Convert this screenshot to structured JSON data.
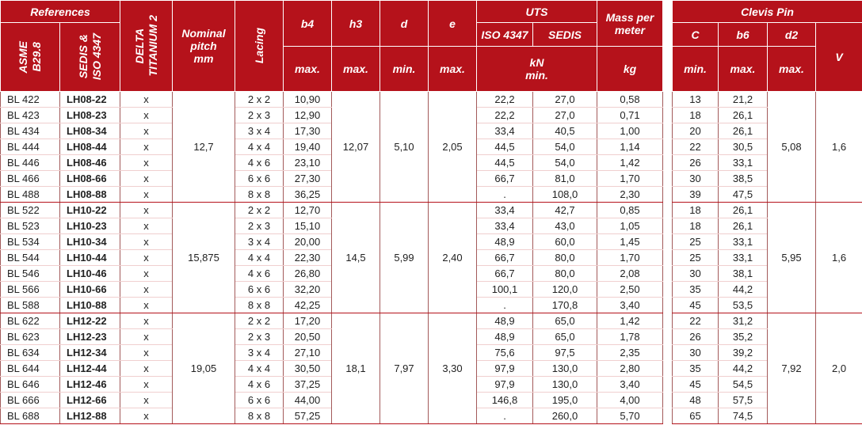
{
  "header": {
    "references": "References",
    "asme": "ASME\nB29.8",
    "sedis_iso": "SEDIS &\nISO 4347",
    "delta": "DELTA\nTITANIUM 2",
    "nominal_pitch": "Nominal\npitch\nmm",
    "lacing": "Lacing",
    "b4": "b4",
    "h3": "h3",
    "d": "d",
    "e": "e",
    "b4_limit": "max.",
    "h3_limit": "max.",
    "d_limit": "min.",
    "e_limit": "max.",
    "uts": "UTS",
    "uts_iso": "ISO 4347",
    "uts_sedis": "SEDIS",
    "uts_unit": "kN\nmin.",
    "mass": "Mass per\nmeter",
    "mass_unit": "kg"
  },
  "clevis_header": {
    "title": "Clevis Pin",
    "c": "C",
    "b6": "b6",
    "d2": "d2",
    "v": "V",
    "c_limit": "min.",
    "b6_limit": "max.",
    "d2_limit": "max."
  },
  "groups": [
    {
      "pitch": "12,7",
      "h3": "12,07",
      "d": "5,10",
      "e": "2,05",
      "d2": "5,08",
      "v": "1,6",
      "rows": [
        [
          "BL 422",
          "LH08-22",
          "x",
          "2 x 2",
          "10,90",
          "22,2",
          "27,0",
          "0,58",
          "13",
          "21,2"
        ],
        [
          "BL 423",
          "LH08-23",
          "x",
          "2 x 3",
          "12,90",
          "22,2",
          "27,0",
          "0,71",
          "18",
          "26,1"
        ],
        [
          "BL 434",
          "LH08-34",
          "x",
          "3 x 4",
          "17,30",
          "33,4",
          "40,5",
          "1,00",
          "20",
          "26,1"
        ],
        [
          "BL 444",
          "LH08-44",
          "x",
          "4 x 4",
          "19,40",
          "44,5",
          "54,0",
          "1,14",
          "22",
          "30,5"
        ],
        [
          "BL 446",
          "LH08-46",
          "x",
          "4 x 6",
          "23,10",
          "44,5",
          "54,0",
          "1,42",
          "26",
          "33,1"
        ],
        [
          "BL 466",
          "LH08-66",
          "x",
          "6 x 6",
          "27,30",
          "66,7",
          "81,0",
          "1,70",
          "30",
          "38,5"
        ],
        [
          "BL 488",
          "LH08-88",
          "x",
          "8 x 8",
          "36,25",
          ".",
          "108,0",
          "2,30",
          "39",
          "47,5"
        ]
      ]
    },
    {
      "pitch": "15,875",
      "h3": "14,5",
      "d": "5,99",
      "e": "2,40",
      "d2": "5,95",
      "v": "1,6",
      "rows": [
        [
          "BL 522",
          "LH10-22",
          "x",
          "2 x 2",
          "12,70",
          "33,4",
          "42,7",
          "0,85",
          "18",
          "26,1"
        ],
        [
          "BL 523",
          "LH10-23",
          "x",
          "2 x 3",
          "15,10",
          "33,4",
          "43,0",
          "1,05",
          "18",
          "26,1"
        ],
        [
          "BL 534",
          "LH10-34",
          "x",
          "3 x 4",
          "20,00",
          "48,9",
          "60,0",
          "1,45",
          "25",
          "33,1"
        ],
        [
          "BL 544",
          "LH10-44",
          "x",
          "4 x 4",
          "22,30",
          "66,7",
          "80,0",
          "1,70",
          "25",
          "33,1"
        ],
        [
          "BL 546",
          "LH10-46",
          "x",
          "4 x 6",
          "26,80",
          "66,7",
          "80,0",
          "2,08",
          "30",
          "38,1"
        ],
        [
          "BL 566",
          "LH10-66",
          "x",
          "6 x 6",
          "32,20",
          "100,1",
          "120,0",
          "2,50",
          "35",
          "44,2"
        ],
        [
          "BL 588",
          "LH10-88",
          "x",
          "8 x 8",
          "42,25",
          ".",
          "170,8",
          "3,40",
          "45",
          "53,5"
        ]
      ]
    },
    {
      "pitch": "19,05",
      "h3": "18,1",
      "d": "7,97",
      "e": "3,30",
      "d2": "7,92",
      "v": "2,0",
      "rows": [
        [
          "BL 622",
          "LH12-22",
          "x",
          "2 x 2",
          "17,20",
          "48,9",
          "65,0",
          "1,42",
          "22",
          "31,2"
        ],
        [
          "BL 623",
          "LH12-23",
          "x",
          "2 x 3",
          "20,50",
          "48,9",
          "65,0",
          "1,78",
          "26",
          "35,2"
        ],
        [
          "BL 634",
          "LH12-34",
          "x",
          "3 x 4",
          "27,10",
          "75,6",
          "97,5",
          "2,35",
          "30",
          "39,2"
        ],
        [
          "BL 644",
          "LH12-44",
          "x",
          "4 x 4",
          "30,50",
          "97,9",
          "130,0",
          "2,80",
          "35",
          "44,2"
        ],
        [
          "BL 646",
          "LH12-46",
          "x",
          "4 x 6",
          "37,25",
          "97,9",
          "130,0",
          "3,40",
          "45",
          "54,5"
        ],
        [
          "BL 666",
          "LH12-66",
          "x",
          "6 x 6",
          "44,00",
          "146,8",
          "195,0",
          "4,00",
          "48",
          "57,5"
        ],
        [
          "BL 688",
          "LH12-88",
          "x",
          "8 x 8",
          "57,25",
          ".",
          "260,0",
          "5,70",
          "65",
          "74,5"
        ]
      ]
    }
  ]
}
